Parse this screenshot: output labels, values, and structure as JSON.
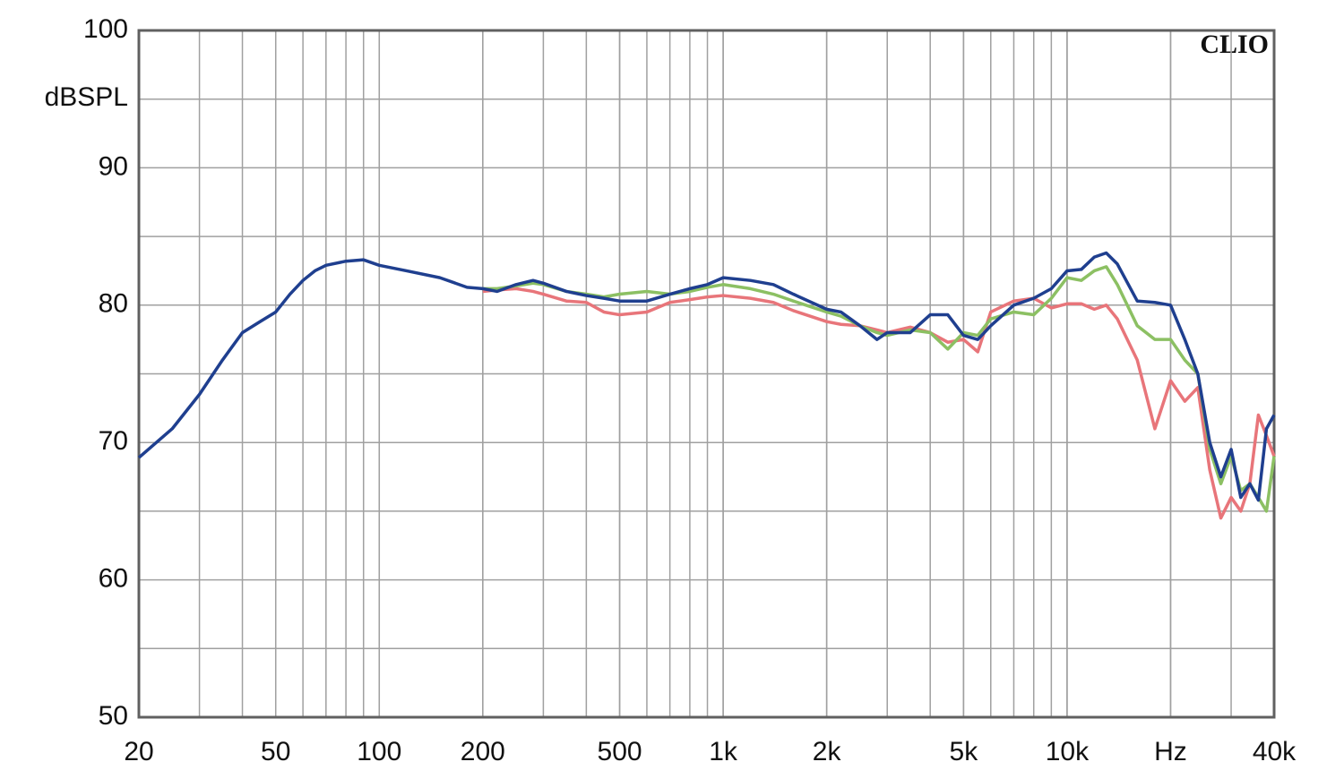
{
  "chart_data": {
    "type": "line",
    "y_label": "dBSPL",
    "annotation": "CLIO",
    "x_scale": "log",
    "grid": true,
    "xlim": [
      20,
      40000
    ],
    "ylim": [
      50,
      100
    ],
    "xticks": [
      20,
      50,
      100,
      200,
      500,
      {
        "value": 1000,
        "label": "1k"
      },
      {
        "value": 2000,
        "label": "2k"
      },
      {
        "value": 5000,
        "label": "5k"
      },
      {
        "value": 10000,
        "label": "10k"
      },
      {
        "value": 20000,
        "label": "Hz"
      },
      {
        "value": 40000,
        "label": "40k"
      }
    ],
    "yticks": [
      50,
      60,
      70,
      80,
      90,
      100
    ],
    "x": [
      20,
      25,
      30,
      35,
      40,
      45,
      50,
      55,
      60,
      65,
      70,
      80,
      90,
      100,
      120,
      150,
      180,
      200,
      220,
      250,
      280,
      300,
      350,
      400,
      450,
      500,
      600,
      700,
      800,
      900,
      1000,
      1200,
      1400,
      1600,
      2000,
      2200,
      2500,
      2800,
      3000,
      3500,
      4000,
      4500,
      5000,
      5500,
      6000,
      7000,
      8000,
      9000,
      10000,
      11000,
      12000,
      13000,
      14000,
      16000,
      18000,
      20000,
      22000,
      24000,
      26000,
      28000,
      30000,
      32000,
      34000,
      36000,
      38000,
      40000
    ],
    "series": [
      {
        "color": "#e8757a",
        "values": [
          null,
          null,
          null,
          null,
          null,
          null,
          null,
          null,
          null,
          null,
          null,
          null,
          null,
          null,
          null,
          null,
          null,
          81.0,
          81.1,
          81.2,
          81.0,
          80.8,
          80.3,
          80.2,
          79.5,
          79.3,
          79.5,
          80.2,
          80.4,
          80.6,
          80.7,
          80.5,
          80.2,
          79.6,
          78.8,
          78.6,
          78.5,
          78.2,
          78.0,
          78.4,
          78.0,
          77.3,
          77.5,
          76.6,
          79.5,
          80.3,
          80.5,
          79.8,
          80.1,
          80.1,
          79.7,
          80.0,
          79.0,
          76.0,
          71.0,
          74.5,
          73.0,
          74.0,
          68.0,
          64.5,
          66.0,
          65.0,
          67.0,
          72.0,
          70.5,
          69.0
        ]
      },
      {
        "color": "#8cc063",
        "values": [
          null,
          null,
          null,
          null,
          null,
          null,
          null,
          null,
          null,
          null,
          null,
          null,
          null,
          null,
          null,
          null,
          null,
          81.2,
          81.2,
          81.4,
          81.6,
          81.5,
          81.0,
          80.8,
          80.6,
          80.8,
          81.0,
          80.8,
          81.0,
          81.3,
          81.5,
          81.2,
          80.8,
          80.3,
          79.5,
          79.2,
          78.5,
          78.0,
          77.8,
          78.2,
          78.0,
          76.8,
          78.0,
          77.8,
          79.0,
          79.5,
          79.3,
          80.5,
          82.0,
          81.8,
          82.5,
          82.8,
          81.5,
          78.5,
          77.5,
          77.5,
          76.0,
          75.0,
          69.5,
          67.0,
          69.0,
          66.5,
          67.0,
          66.0,
          65.0,
          69.0
        ]
      },
      {
        "color": "#1f3f8f",
        "values": [
          68.9,
          71.0,
          73.5,
          76.0,
          78.0,
          78.8,
          79.5,
          80.8,
          81.8,
          82.5,
          82.9,
          83.2,
          83.3,
          82.9,
          82.5,
          82.0,
          81.3,
          81.2,
          81.0,
          81.5,
          81.8,
          81.6,
          81.0,
          80.7,
          80.5,
          80.3,
          80.3,
          80.8,
          81.2,
          81.5,
          82.0,
          81.8,
          81.5,
          80.8,
          79.7,
          79.5,
          78.5,
          77.5,
          78.0,
          78.0,
          79.3,
          79.3,
          77.8,
          77.5,
          78.5,
          80.0,
          80.5,
          81.2,
          82.5,
          82.6,
          83.5,
          83.8,
          83.0,
          80.3,
          80.2,
          80.0,
          77.5,
          75.0,
          70.0,
          67.5,
          69.5,
          66.0,
          67.0,
          65.8,
          71.0,
          72.0
        ]
      }
    ]
  }
}
